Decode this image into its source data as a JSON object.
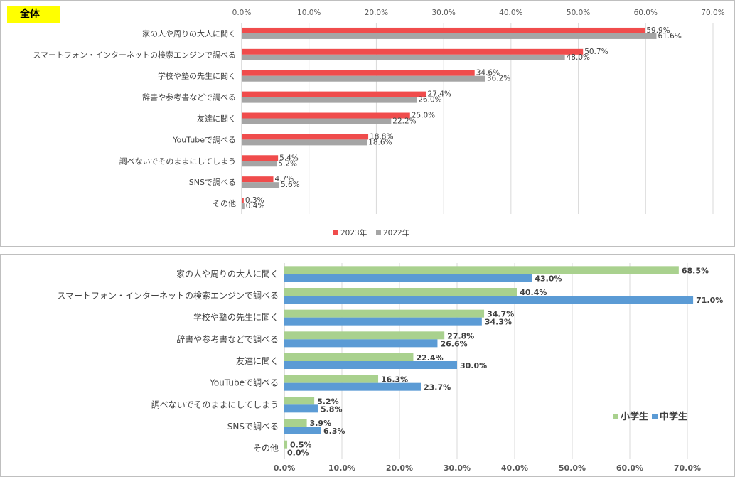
{
  "colors": {
    "red": "#f04c4c",
    "gray": "#a5a5a5",
    "green": "#a9d18e",
    "blue": "#5b9bd5",
    "grid": "#d9d9d9"
  },
  "chart_data": [
    {
      "type": "bar",
      "orientation": "horizontal",
      "title": "全体",
      "categories": [
        "家の人や周りの大人に聞く",
        "スマートフォン・インターネットの検索エンジンで調べる",
        "学校や塾の先生に聞く",
        "辞書や参考書などで調べる",
        "友達に聞く",
        "YouTubeで調べる",
        "調べないでそのままにしてしまう",
        "SNSで調べる",
        "その他"
      ],
      "series": [
        {
          "name": "2023年",
          "values": [
            59.9,
            50.7,
            34.6,
            27.4,
            25.0,
            18.8,
            5.4,
            4.7,
            0.3
          ],
          "labels": [
            "59.9%",
            "50.7%",
            "34.6%",
            "27.4%",
            "25.0%",
            "18.8%",
            "5.4%",
            "4.7%",
            "0.3%"
          ],
          "color": "#f04c4c"
        },
        {
          "name": "2022年",
          "values": [
            61.6,
            48.0,
            36.2,
            26.0,
            22.2,
            18.6,
            5.2,
            5.6,
            0.4
          ],
          "labels": [
            "61.6%",
            "48.0%",
            "36.2%",
            "26.0%",
            "22.2%",
            "18.6%",
            "5.2%",
            "5.6%",
            "0.4%"
          ],
          "color": "#a5a5a5"
        }
      ],
      "xlim": [
        0,
        70
      ],
      "ticks": [
        "0.0%",
        "10.0%",
        "20.0%",
        "30.0%",
        "40.0%",
        "50.0%",
        "60.0%",
        "70.0%"
      ],
      "tick_axis_position": "top",
      "grid": true,
      "legend": "bottom"
    },
    {
      "type": "bar",
      "orientation": "horizontal",
      "categories": [
        "家の人や周りの大人に聞く",
        "スマートフォン・インターネットの検索エンジンで調べる",
        "学校や塾の先生に聞く",
        "辞書や参考書などで調べる",
        "友達に聞く",
        "YouTubeで調べる",
        "調べないでそのままにしてしまう",
        "SNSで調べる",
        "その他"
      ],
      "series": [
        {
          "name": "小学生",
          "values": [
            68.5,
            40.4,
            34.7,
            27.8,
            22.4,
            16.3,
            5.2,
            3.9,
            0.5
          ],
          "labels": [
            "68.5%",
            "40.4%",
            "34.7%",
            "27.8%",
            "22.4%",
            "16.3%",
            "5.2%",
            "3.9%",
            "0.5%"
          ],
          "color": "#a9d18e"
        },
        {
          "name": "中学生",
          "values": [
            43.0,
            71.0,
            34.3,
            26.6,
            30.0,
            23.7,
            5.8,
            6.3,
            0.0
          ],
          "labels": [
            "43.0%",
            "71.0%",
            "34.3%",
            "26.6%",
            "30.0%",
            "23.7%",
            "5.8%",
            "6.3%",
            "0.0%"
          ],
          "color": "#5b9bd5"
        }
      ],
      "xlim": [
        0,
        70
      ],
      "ticks": [
        "0.0%",
        "10.0%",
        "20.0%",
        "30.0%",
        "40.0%",
        "50.0%",
        "60.0%",
        "70.0%"
      ],
      "tick_axis_position": "bottom",
      "grid": true,
      "legend": "bottom-right"
    }
  ]
}
